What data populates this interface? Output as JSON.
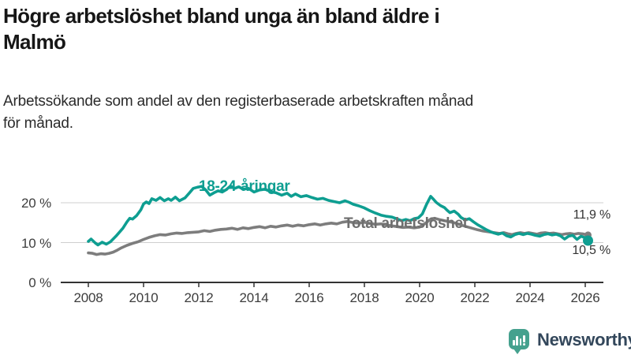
{
  "header": {
    "title": "Högre arbetslöshet bland unga än bland äldre i\nMalmö",
    "subtitle": "Arbetssökande som andel av den registerbaserade arbetskraften månad\nför månad."
  },
  "chart_data": {
    "type": "line",
    "title": "Högre arbetslöshet bland unga än bland äldre i Malmö",
    "subtitle": "Arbetssökande som andel av den registerbaserade arbetskraften månad för månad.",
    "unit": "%",
    "grid": "horizontal",
    "legend_position": "inline-labels",
    "xlim": [
      2007.0,
      2026.7
    ],
    "ylim": [
      0,
      26
    ],
    "x_ticks": [
      "2008",
      "2010",
      "2012",
      "2014",
      "2016",
      "2018",
      "2020",
      "2022",
      "2024",
      "2026"
    ],
    "y_ticks": [
      {
        "value": 20,
        "label": "20 %"
      },
      {
        "value": 10,
        "label": "10 %"
      },
      {
        "value": 0,
        "label": "0 %"
      }
    ],
    "series": [
      {
        "name": "18-24-åringar",
        "color": "#0e9e91",
        "label_color": "#0e9e91",
        "end_label": "10,5 %",
        "end_value": 10.5,
        "points": [
          [
            2008.0,
            10.3
          ],
          [
            2008.1,
            10.9
          ],
          [
            2008.25,
            9.9
          ],
          [
            2008.35,
            9.4
          ],
          [
            2008.5,
            10.1
          ],
          [
            2008.65,
            9.6
          ],
          [
            2008.8,
            10.2
          ],
          [
            2009.0,
            11.6
          ],
          [
            2009.25,
            13.6
          ],
          [
            2009.4,
            15.2
          ],
          [
            2009.5,
            16.1
          ],
          [
            2009.6,
            15.9
          ],
          [
            2009.75,
            16.8
          ],
          [
            2009.9,
            18.2
          ],
          [
            2010.0,
            19.7
          ],
          [
            2010.1,
            20.2
          ],
          [
            2010.2,
            19.8
          ],
          [
            2010.3,
            21.0
          ],
          [
            2010.45,
            20.6
          ],
          [
            2010.6,
            21.3
          ],
          [
            2010.75,
            20.5
          ],
          [
            2010.9,
            21.0
          ],
          [
            2011.0,
            20.6
          ],
          [
            2011.15,
            21.4
          ],
          [
            2011.3,
            20.5
          ],
          [
            2011.5,
            21.2
          ],
          [
            2011.65,
            22.4
          ],
          [
            2011.8,
            23.6
          ],
          [
            2011.95,
            23.9
          ],
          [
            2012.1,
            24.1
          ],
          [
            2012.25,
            23.2
          ],
          [
            2012.4,
            21.9
          ],
          [
            2012.55,
            22.5
          ],
          [
            2012.7,
            23.0
          ],
          [
            2012.85,
            22.7
          ],
          [
            2013.0,
            23.3
          ],
          [
            2013.15,
            24.2
          ],
          [
            2013.3,
            23.6
          ],
          [
            2013.45,
            24.0
          ],
          [
            2013.6,
            23.4
          ],
          [
            2013.8,
            23.6
          ],
          [
            2014.0,
            22.7
          ],
          [
            2014.2,
            23.2
          ],
          [
            2014.4,
            23.4
          ],
          [
            2014.6,
            22.8
          ],
          [
            2014.8,
            22.5
          ],
          [
            2015.0,
            21.9
          ],
          [
            2015.2,
            22.4
          ],
          [
            2015.35,
            21.6
          ],
          [
            2015.5,
            22.2
          ],
          [
            2015.7,
            21.5
          ],
          [
            2015.9,
            21.8
          ],
          [
            2016.1,
            21.3
          ],
          [
            2016.3,
            20.9
          ],
          [
            2016.5,
            21.1
          ],
          [
            2016.7,
            20.6
          ],
          [
            2016.9,
            20.3
          ],
          [
            2017.1,
            20.0
          ],
          [
            2017.3,
            20.5
          ],
          [
            2017.45,
            20.1
          ],
          [
            2017.6,
            19.6
          ],
          [
            2017.8,
            19.2
          ],
          [
            2018.0,
            18.7
          ],
          [
            2018.2,
            18.0
          ],
          [
            2018.4,
            17.4
          ],
          [
            2018.6,
            16.9
          ],
          [
            2018.8,
            16.6
          ],
          [
            2019.0,
            16.4
          ],
          [
            2019.2,
            15.9
          ],
          [
            2019.35,
            15.5
          ],
          [
            2019.5,
            15.8
          ],
          [
            2019.65,
            15.5
          ],
          [
            2019.8,
            16.0
          ],
          [
            2019.95,
            16.2
          ],
          [
            2020.1,
            17.2
          ],
          [
            2020.25,
            19.6
          ],
          [
            2020.4,
            21.6
          ],
          [
            2020.5,
            20.9
          ],
          [
            2020.6,
            20.1
          ],
          [
            2020.75,
            19.3
          ],
          [
            2020.9,
            18.8
          ],
          [
            2021.0,
            18.1
          ],
          [
            2021.1,
            17.5
          ],
          [
            2021.25,
            17.9
          ],
          [
            2021.4,
            17.1
          ],
          [
            2021.5,
            16.3
          ],
          [
            2021.65,
            15.7
          ],
          [
            2021.8,
            16.0
          ],
          [
            2021.95,
            15.2
          ],
          [
            2022.1,
            14.5
          ],
          [
            2022.25,
            13.9
          ],
          [
            2022.4,
            13.3
          ],
          [
            2022.55,
            12.8
          ],
          [
            2022.7,
            12.4
          ],
          [
            2022.85,
            12.1
          ],
          [
            2023.0,
            12.4
          ],
          [
            2023.15,
            11.7
          ],
          [
            2023.3,
            11.4
          ],
          [
            2023.45,
            12.0
          ],
          [
            2023.6,
            12.3
          ],
          [
            2023.75,
            12.0
          ],
          [
            2023.9,
            12.3
          ],
          [
            2024.05,
            12.1
          ],
          [
            2024.2,
            11.8
          ],
          [
            2024.35,
            11.6
          ],
          [
            2024.5,
            12.0
          ],
          [
            2024.65,
            12.2
          ],
          [
            2024.8,
            11.9
          ],
          [
            2024.95,
            12.1
          ],
          [
            2025.1,
            11.7
          ],
          [
            2025.25,
            10.9
          ],
          [
            2025.4,
            11.6
          ],
          [
            2025.55,
            11.8
          ],
          [
            2025.7,
            10.8
          ],
          [
            2025.85,
            11.6
          ],
          [
            2026.0,
            11.2
          ],
          [
            2026.1,
            10.5
          ]
        ]
      },
      {
        "name": "Total arbetslöshet",
        "color": "#7d7d7d",
        "label_color": "#6e6e6e",
        "end_label": "11,9 %",
        "end_value": 11.9,
        "points": [
          [
            2008.0,
            7.4
          ],
          [
            2008.15,
            7.3
          ],
          [
            2008.3,
            7.0
          ],
          [
            2008.45,
            7.2
          ],
          [
            2008.6,
            7.1
          ],
          [
            2008.75,
            7.3
          ],
          [
            2008.9,
            7.6
          ],
          [
            2009.05,
            8.1
          ],
          [
            2009.2,
            8.7
          ],
          [
            2009.4,
            9.3
          ],
          [
            2009.6,
            9.8
          ],
          [
            2009.8,
            10.2
          ],
          [
            2010.0,
            10.8
          ],
          [
            2010.2,
            11.3
          ],
          [
            2010.4,
            11.7
          ],
          [
            2010.6,
            12.0
          ],
          [
            2010.8,
            11.9
          ],
          [
            2011.0,
            12.2
          ],
          [
            2011.2,
            12.4
          ],
          [
            2011.4,
            12.3
          ],
          [
            2011.6,
            12.5
          ],
          [
            2011.8,
            12.6
          ],
          [
            2012.0,
            12.7
          ],
          [
            2012.2,
            13.0
          ],
          [
            2012.4,
            12.8
          ],
          [
            2012.6,
            13.1
          ],
          [
            2012.8,
            13.3
          ],
          [
            2013.0,
            13.4
          ],
          [
            2013.2,
            13.6
          ],
          [
            2013.4,
            13.3
          ],
          [
            2013.6,
            13.7
          ],
          [
            2013.8,
            13.5
          ],
          [
            2014.0,
            13.8
          ],
          [
            2014.2,
            14.0
          ],
          [
            2014.4,
            13.7
          ],
          [
            2014.6,
            14.1
          ],
          [
            2014.8,
            13.9
          ],
          [
            2015.0,
            14.2
          ],
          [
            2015.2,
            14.4
          ],
          [
            2015.4,
            14.1
          ],
          [
            2015.6,
            14.4
          ],
          [
            2015.8,
            14.2
          ],
          [
            2016.0,
            14.5
          ],
          [
            2016.2,
            14.7
          ],
          [
            2016.4,
            14.4
          ],
          [
            2016.6,
            14.7
          ],
          [
            2016.8,
            14.9
          ],
          [
            2017.0,
            14.7
          ],
          [
            2017.2,
            15.1
          ],
          [
            2017.4,
            15.3
          ],
          [
            2017.6,
            15.0
          ],
          [
            2017.8,
            14.9
          ],
          [
            2018.0,
            15.1
          ],
          [
            2018.2,
            14.8
          ],
          [
            2018.4,
            14.6
          ],
          [
            2018.6,
            14.7
          ],
          [
            2018.8,
            14.4
          ],
          [
            2019.0,
            14.2
          ],
          [
            2019.2,
            14.0
          ],
          [
            2019.4,
            13.8
          ],
          [
            2019.6,
            13.9
          ],
          [
            2019.8,
            13.7
          ],
          [
            2020.0,
            13.9
          ],
          [
            2020.2,
            14.8
          ],
          [
            2020.4,
            15.9
          ],
          [
            2020.55,
            16.1
          ],
          [
            2020.7,
            15.8
          ],
          [
            2020.9,
            15.5
          ],
          [
            2021.1,
            15.2
          ],
          [
            2021.3,
            14.9
          ],
          [
            2021.5,
            14.4
          ],
          [
            2021.7,
            14.0
          ],
          [
            2021.9,
            13.6
          ],
          [
            2022.1,
            13.2
          ],
          [
            2022.3,
            12.9
          ],
          [
            2022.5,
            12.7
          ],
          [
            2022.7,
            12.5
          ],
          [
            2022.9,
            12.3
          ],
          [
            2023.05,
            12.5
          ],
          [
            2023.2,
            12.2
          ],
          [
            2023.35,
            12.0
          ],
          [
            2023.5,
            12.3
          ],
          [
            2023.65,
            12.5
          ],
          [
            2023.8,
            12.3
          ],
          [
            2023.95,
            12.5
          ],
          [
            2024.1,
            12.3
          ],
          [
            2024.25,
            12.1
          ],
          [
            2024.4,
            12.4
          ],
          [
            2024.55,
            12.5
          ],
          [
            2024.7,
            12.3
          ],
          [
            2024.85,
            12.4
          ],
          [
            2025.0,
            12.2
          ],
          [
            2025.15,
            12.0
          ],
          [
            2025.3,
            12.2
          ],
          [
            2025.45,
            12.3
          ],
          [
            2025.6,
            12.1
          ],
          [
            2025.75,
            12.3
          ],
          [
            2025.9,
            12.2
          ],
          [
            2026.1,
            11.9
          ]
        ]
      }
    ]
  },
  "branding": {
    "logo_text": "Newsworthy",
    "logo_text_color": "#33475b",
    "icon_color": "#45a18e",
    "icon_glyph": "bar-chart-exclamation"
  }
}
